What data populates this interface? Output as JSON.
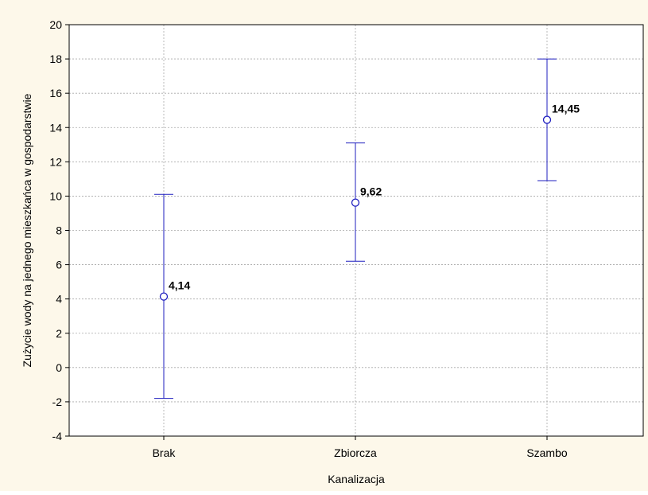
{
  "chart_data": {
    "type": "scatter",
    "subtype": "means-with-error-bars",
    "title": "",
    "xlabel": "Kanalizacja",
    "ylabel": "Zużycie wody na jednego mieszkańca w gospodarstwie",
    "categories": [
      "Brak",
      "Zbiorcza",
      "Szambo"
    ],
    "means": [
      4.14,
      9.62,
      14.45
    ],
    "lower": [
      -1.8,
      6.2,
      10.9
    ],
    "upper": [
      10.1,
      13.1,
      18.0
    ],
    "data_labels": [
      "4,14",
      "9,62",
      "14,45"
    ],
    "ylim": [
      -4,
      20
    ],
    "yticks": [
      "-4",
      "-2",
      "0",
      "2",
      "4",
      "6",
      "8",
      "10",
      "12",
      "14",
      "16",
      "18",
      "20"
    ],
    "grid": true,
    "colors": {
      "series": "#1f1fbf",
      "background": "#fdf8ea",
      "plot_area": "#ffffff",
      "grid": "#a8a8a8"
    }
  }
}
